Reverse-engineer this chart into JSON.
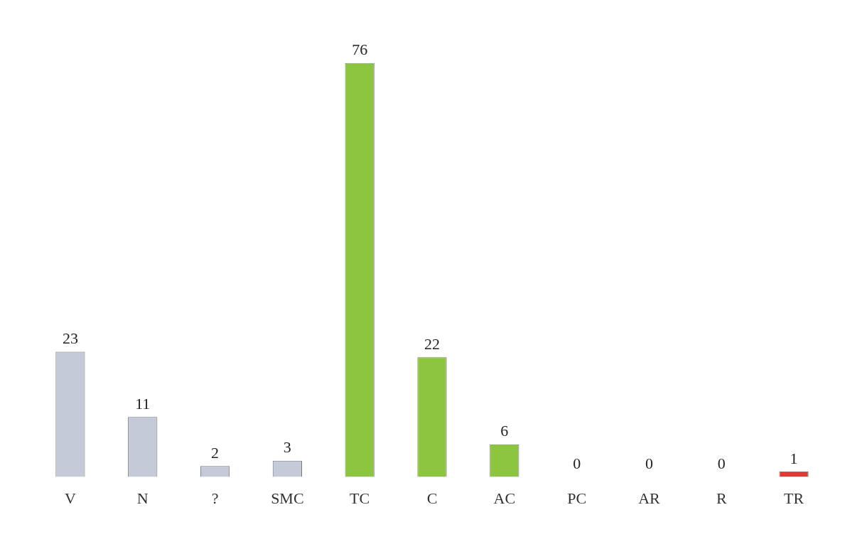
{
  "chart_data": {
    "type": "bar",
    "categories": [
      "V",
      "N",
      "?",
      "SMC",
      "TC",
      "C",
      "AC",
      "PC",
      "AR",
      "R",
      "TR"
    ],
    "values": [
      23,
      11,
      2,
      3,
      76,
      22,
      6,
      0,
      0,
      0,
      1
    ],
    "colors": [
      "#c5cad8",
      "#c5cad8",
      "#c5cad8",
      "#c5cad8",
      "#8cc63f",
      "#8cc63f",
      "#8cc63f",
      "#6aaa3a",
      "#cccc33",
      "#e08040",
      "#e03a35"
    ],
    "data_labels": true,
    "grid": false,
    "legend": false
  }
}
